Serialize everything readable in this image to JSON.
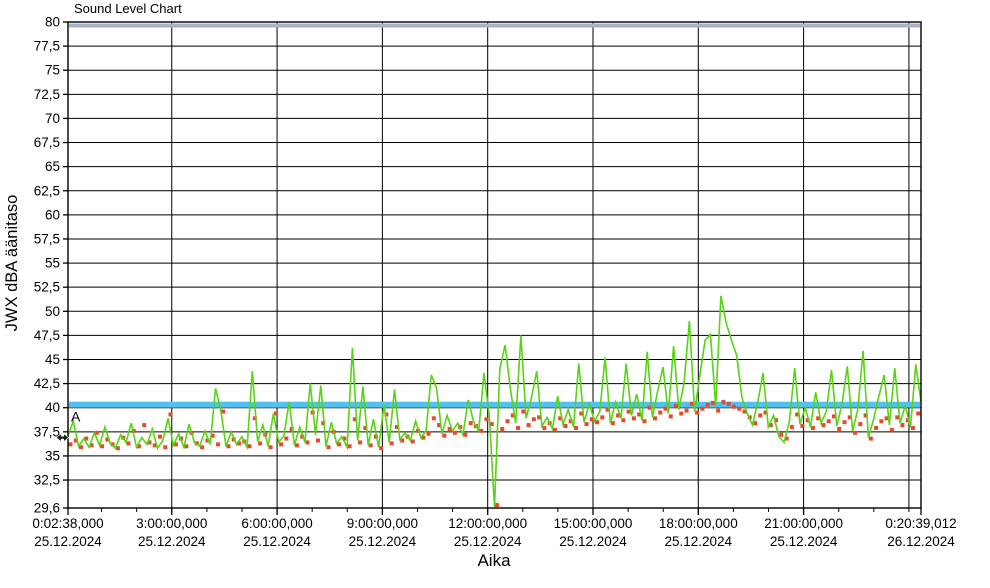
{
  "chart_data": {
    "type": "line",
    "title": "Sound Level Chart",
    "xlabel": "Aika",
    "ylabel": "JWX dBA äänitaso",
    "xlim_hours": [
      0.0439,
      24.3442
    ],
    "ylim": [
      29.6,
      80
    ],
    "grid": true,
    "legend": "none",
    "background": "#ffffff",
    "grid_color": "#000000",
    "frame_color": "#000000",
    "y_ticks": [
      {
        "v": 80,
        "label": "80"
      },
      {
        "v": 77.5,
        "label": "77,5"
      },
      {
        "v": 75,
        "label": "75"
      },
      {
        "v": 72.5,
        "label": "72,5"
      },
      {
        "v": 70,
        "label": "70"
      },
      {
        "v": 67.5,
        "label": "67,5"
      },
      {
        "v": 65,
        "label": "65"
      },
      {
        "v": 62.5,
        "label": "62,5"
      },
      {
        "v": 60,
        "label": "60"
      },
      {
        "v": 57.5,
        "label": "57,5"
      },
      {
        "v": 55,
        "label": "55"
      },
      {
        "v": 52.5,
        "label": "52,5"
      },
      {
        "v": 50,
        "label": "50"
      },
      {
        "v": 47.5,
        "label": "47,5"
      },
      {
        "v": 45,
        "label": "45"
      },
      {
        "v": 42.5,
        "label": "42,5"
      },
      {
        "v": 40,
        "label": "40"
      },
      {
        "v": 37.5,
        "label": "37,5"
      },
      {
        "v": 35,
        "label": "35"
      },
      {
        "v": 32.5,
        "label": "32,5"
      },
      {
        "v": 29.6,
        "label": "29,6"
      }
    ],
    "x_ticks": [
      {
        "hour": 0.0439,
        "time": "0:02:38,000",
        "date": "25.12.2024"
      },
      {
        "hour": 3,
        "time": "3:00:00,000",
        "date": "25.12.2024"
      },
      {
        "hour": 6,
        "time": "6:00:00,000",
        "date": "25.12.2024"
      },
      {
        "hour": 9,
        "time": "9:00:00,000",
        "date": "25.12.2024"
      },
      {
        "hour": 12,
        "time": "12:00:00,000",
        "date": "25.12.2024"
      },
      {
        "hour": 15,
        "time": "15:00:00,000",
        "date": "25.12.2024"
      },
      {
        "hour": 18,
        "time": "18:00:00,000",
        "date": "25.12.2024"
      },
      {
        "hour": 21,
        "time": "21:00:00,000",
        "date": "25.12.2024"
      },
      {
        "hour": 24.3442,
        "time": "0:20:39,012",
        "date": "26.12.2024"
      }
    ],
    "x_minor_tick_every_hours": 1,
    "vertical_grid_hours": [
      3,
      6,
      9,
      12,
      15,
      18,
      21,
      24
    ],
    "limit_lines": [
      {
        "name": "A",
        "label": "A",
        "value_dBA": 40,
        "color": "#53c1ef"
      },
      {
        "name": "upper",
        "label": "",
        "value_dBA": 80,
        "color": "#a9b1c6"
      }
    ],
    "series": [
      {
        "name": "green-line-series",
        "style": "line",
        "color": "#57d413",
        "t0_hours": 0.045,
        "dt_hours": 0.15,
        "values_dBA": [
          37.1,
          38.6,
          36.0,
          36.8,
          35.9,
          37.4,
          36.1,
          38.0,
          36.3,
          35.8,
          37.2,
          36.4,
          38.4,
          35.9,
          36.9,
          36.2,
          37.8,
          35.8,
          36.6,
          38.9,
          36.1,
          37.3,
          35.9,
          38.3,
          36.4,
          36.0,
          37.6,
          36.2,
          42.0,
          39.8,
          36.0,
          37.5,
          36.2,
          37.0,
          35.9,
          43.8,
          36.5,
          38.2,
          36.0,
          39.4,
          36.4,
          37.1,
          40.6,
          36.1,
          38.0,
          36.4,
          42.5,
          37.2,
          42.3,
          36.0,
          38.5,
          36.3,
          37.0,
          35.9,
          46.2,
          36.6,
          42.2,
          36.1,
          38.8,
          35.9,
          40.3,
          36.4,
          41.9,
          36.7,
          37.4,
          36.6,
          38.6,
          36.9,
          37.6,
          43.4,
          42.0,
          37.3,
          39.2,
          37.6,
          38.4,
          37.2,
          40.8,
          38.6,
          37.6,
          43.6,
          39.2,
          29.7,
          44.0,
          46.5,
          42.0,
          38.4,
          47.5,
          38.9,
          41.0,
          43.8,
          38.1,
          39.0,
          37.8,
          41.2,
          38.3,
          39.8,
          38.0,
          44.6,
          38.5,
          40.4,
          38.6,
          39.6,
          45.2,
          38.4,
          40.6,
          38.9,
          44.6,
          39.2,
          41.4,
          38.7,
          45.8,
          39.0,
          41.8,
          44.2,
          39.4,
          46.4,
          39.8,
          42.6,
          49.0,
          39.6,
          43.4,
          47.0,
          47.6,
          40.2,
          51.6,
          48.8,
          47.0,
          45.4,
          41.0,
          39.4,
          38.2,
          40.6,
          43.6,
          38.0,
          39.2,
          37.0,
          36.4,
          38.6,
          44.1,
          38.3,
          40.0,
          38.0,
          41.6,
          38.4,
          39.6,
          43.9,
          38.1,
          40.4,
          44.3,
          37.6,
          39.8,
          45.9,
          36.9,
          38.8,
          41.2,
          43.4,
          38.2,
          44.1,
          38.4,
          40.2,
          38.0,
          44.5,
          40.6
        ]
      },
      {
        "name": "red-square-series",
        "style": "squares",
        "color": "#e8492c",
        "t0_hours": 0.115,
        "dt_hours": 0.15,
        "values_dBA": [
          36.2,
          36.6,
          35.9,
          36.8,
          36.1,
          37.4,
          36.0,
          36.7,
          36.2,
          35.8,
          36.9,
          36.3,
          37.6,
          36.0,
          38.2,
          36.4,
          36.1,
          37.0,
          35.9,
          39.3,
          36.2,
          36.8,
          36.0,
          37.4,
          36.3,
          35.9,
          36.6,
          37.1,
          36.2,
          39.6,
          36.0,
          36.7,
          36.3,
          36.5,
          36.0,
          38.9,
          36.3,
          37.2,
          35.9,
          39.4,
          36.2,
          36.8,
          37.8,
          36.1,
          37.0,
          36.4,
          39.5,
          36.6,
          38.4,
          35.9,
          37.5,
          36.2,
          36.8,
          36.0,
          38.8,
          36.4,
          37.9,
          36.1,
          37.0,
          35.8,
          39.3,
          36.3,
          38.0,
          36.6,
          37.0,
          36.5,
          37.6,
          36.9,
          37.3,
          38.9,
          38.2,
          37.1,
          37.8,
          37.4,
          38.0,
          37.2,
          38.4,
          38.1,
          37.6,
          38.8,
          38.3,
          29.9,
          37.8,
          38.6,
          39.2,
          37.9,
          39.6,
          38.2,
          38.8,
          39.0,
          37.9,
          38.4,
          37.7,
          38.9,
          38.1,
          38.6,
          37.9,
          39.4,
          38.3,
          38.8,
          38.5,
          39.0,
          39.8,
          38.4,
          39.2,
          38.7,
          39.6,
          38.9,
          39.3,
          38.6,
          40.0,
          38.9,
          39.5,
          39.9,
          39.1,
          40.2,
          39.4,
          39.7,
          40.4,
          39.5,
          39.9,
          40.3,
          40.5,
          39.7,
          40.6,
          40.4,
          40.1,
          39.9,
          39.6,
          39.0,
          38.4,
          39.2,
          39.5,
          38.2,
          38.7,
          37.2,
          36.8,
          38.0,
          39.3,
          38.1,
          38.7,
          37.9,
          38.9,
          38.2,
          38.6,
          39.1,
          37.8,
          38.5,
          39.0,
          37.4,
          38.3,
          39.2,
          36.8,
          37.9,
          38.6,
          38.9,
          37.7,
          39.0,
          38.2,
          38.7,
          37.9,
          39.4
        ]
      }
    ],
    "mouse_cursor": {
      "visible": true,
      "shape": "horizontal-double-arrow",
      "at_hour": 0.05,
      "at_dBA": 36.9
    }
  }
}
